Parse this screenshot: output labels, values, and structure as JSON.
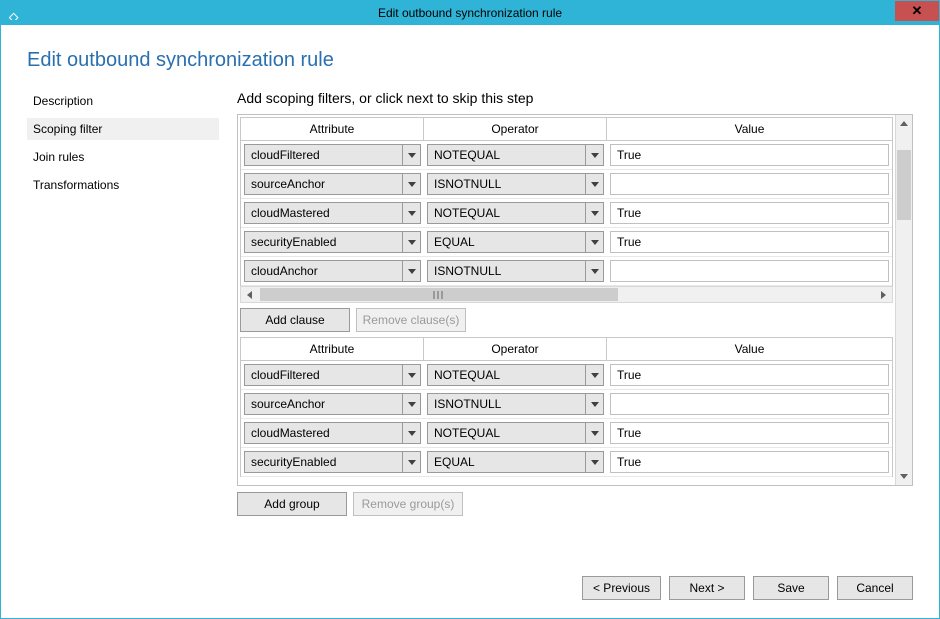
{
  "window": {
    "title": "Edit outbound synchronization rule"
  },
  "pageTitle": "Edit outbound synchronization rule",
  "sidebar": {
    "items": [
      {
        "label": "Description"
      },
      {
        "label": "Scoping filter",
        "selected": true
      },
      {
        "label": "Join rules"
      },
      {
        "label": "Transformations"
      }
    ]
  },
  "stepTitle": "Add scoping filters, or click next to skip this step",
  "headers": {
    "attribute": "Attribute",
    "operator": "Operator",
    "value": "Value"
  },
  "groups": [
    {
      "rows": [
        {
          "attribute": "cloudFiltered",
          "operator": "NOTEQUAL",
          "value": "True"
        },
        {
          "attribute": "sourceAnchor",
          "operator": "ISNOTNULL",
          "value": ""
        },
        {
          "attribute": "cloudMastered",
          "operator": "NOTEQUAL",
          "value": "True"
        },
        {
          "attribute": "securityEnabled",
          "operator": "EQUAL",
          "value": "True"
        },
        {
          "attribute": "cloudAnchor",
          "operator": "ISNOTNULL",
          "value": ""
        }
      ],
      "hscroll": true,
      "buttons": {
        "add": "Add clause",
        "remove": "Remove clause(s)",
        "removeEnabled": false
      }
    },
    {
      "rows": [
        {
          "attribute": "cloudFiltered",
          "operator": "NOTEQUAL",
          "value": "True"
        },
        {
          "attribute": "sourceAnchor",
          "operator": "ISNOTNULL",
          "value": ""
        },
        {
          "attribute": "cloudMastered",
          "operator": "NOTEQUAL",
          "value": "True"
        },
        {
          "attribute": "securityEnabled",
          "operator": "EQUAL",
          "value": "True"
        }
      ],
      "hscroll": false,
      "buttons": null
    }
  ],
  "groupButtons": {
    "add": "Add group",
    "remove": "Remove group(s)",
    "removeEnabled": false
  },
  "wizard": {
    "previous": "< Previous",
    "next": "Next >",
    "save": "Save",
    "cancel": "Cancel"
  },
  "colors": {
    "accent": "#2fb4d8",
    "titleText": "#2a6fb0",
    "close": "#c75050",
    "controlFace": "#e6e6e6"
  }
}
